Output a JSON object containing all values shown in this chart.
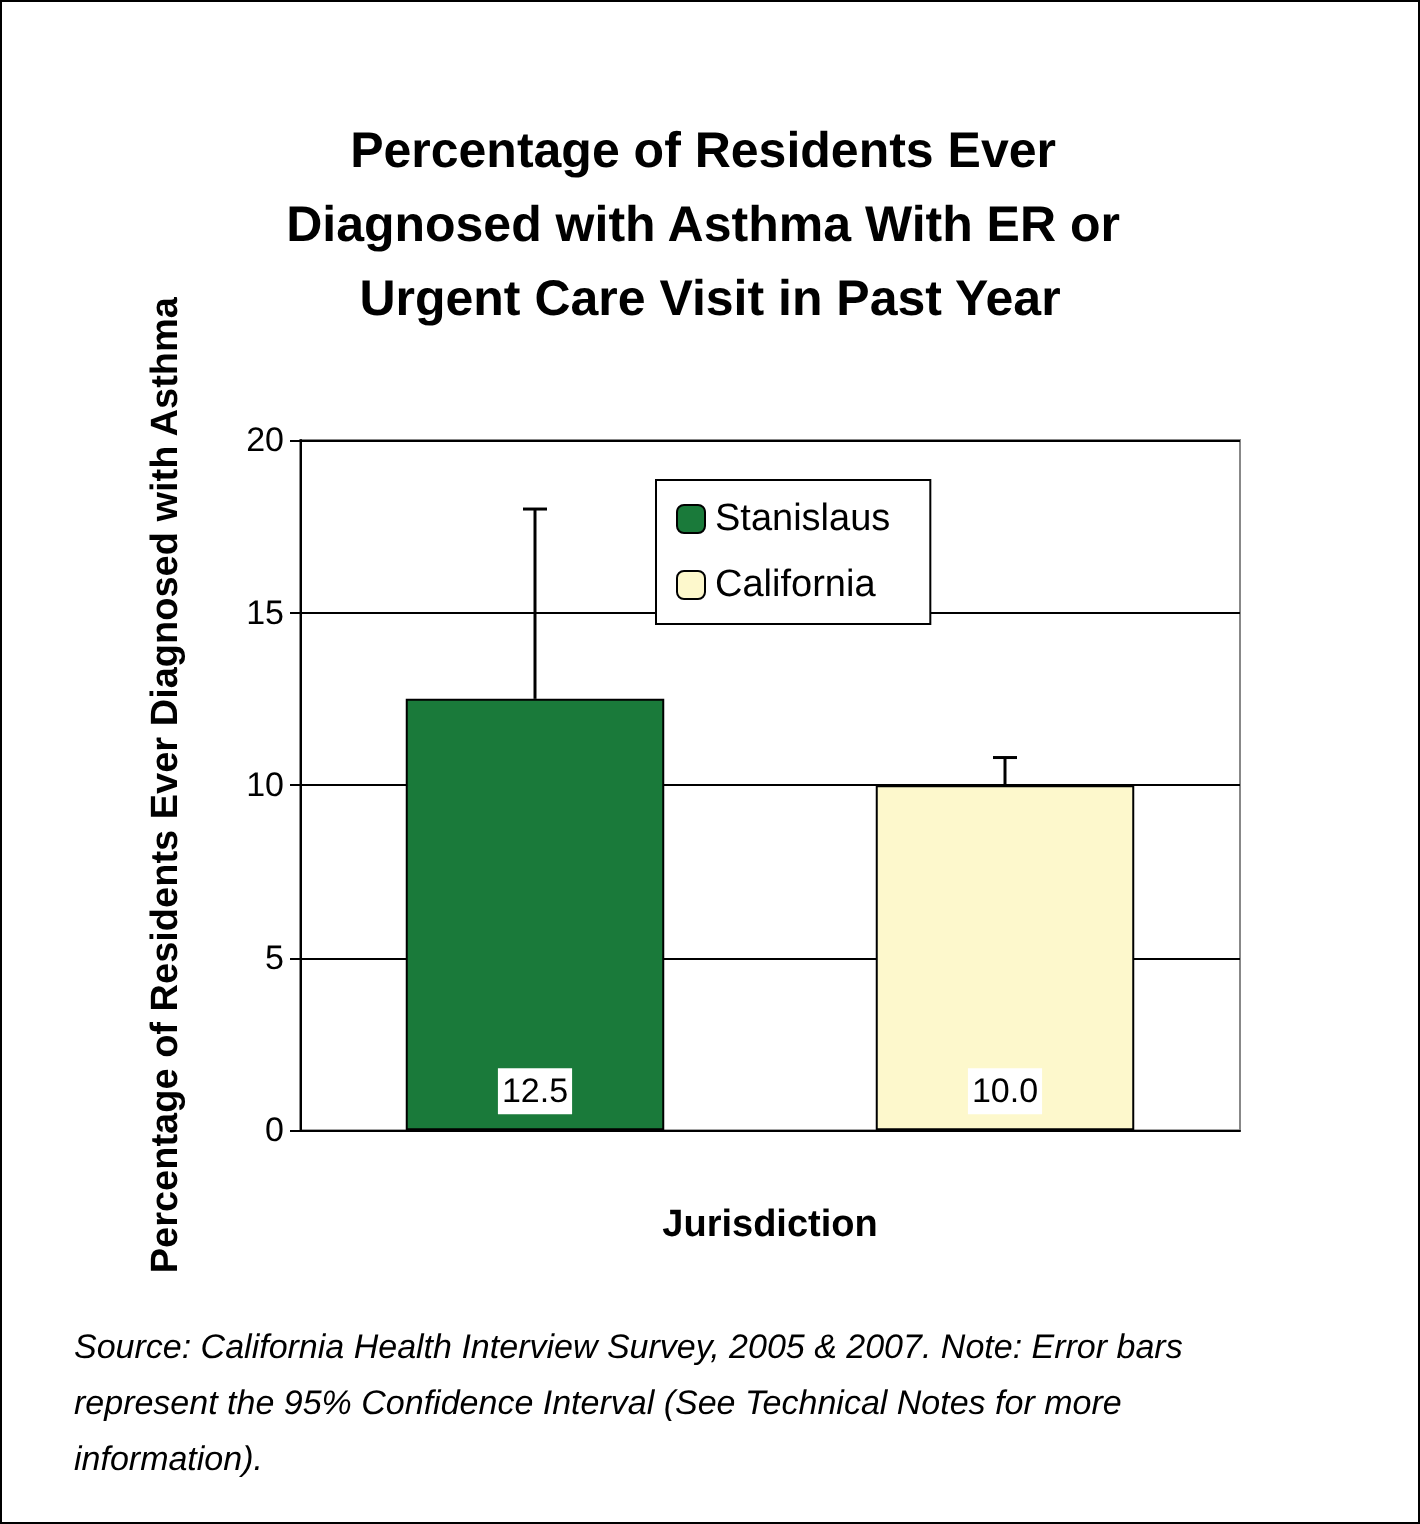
{
  "chart_data": {
    "type": "bar",
    "title": "Percentage of Residents Ever Diagnosed with Asthma With ER or Urgent Care Visit in Past Year",
    "xlabel": "Jurisdiction",
    "ylabel": "Percentage of Residents Ever Diagnosed with Asthma",
    "categories": [
      null,
      null
    ],
    "series": [
      {
        "name": "Stanislaus",
        "color": "#1a7a3a",
        "values": [
          12.5,
          null
        ],
        "value_labels": [
          "12.5",
          null
        ],
        "errors": [
          [
            12.5,
            18.0
          ],
          null
        ]
      },
      {
        "name": "California",
        "color": "#fdf8cc",
        "values": [
          null,
          10.0
        ],
        "value_labels": [
          null,
          "10.0"
        ],
        "errors": [
          null,
          [
            10.0,
            10.8
          ]
        ]
      }
    ],
    "ylim": [
      0,
      20
    ],
    "yticks": [
      0,
      5,
      10,
      15,
      20
    ],
    "grid": "y",
    "legend": "top",
    "annotations": [
      "Source: California Health Interview Survey, 2005 & 2007.  Note: Error bars represent the 95% Confidence Interval (See Technical Notes for more information)."
    ]
  }
}
